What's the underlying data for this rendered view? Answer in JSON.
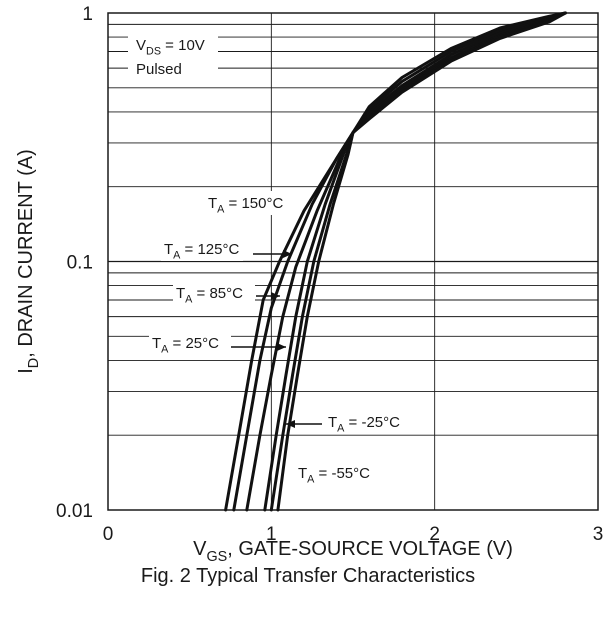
{
  "chart_data": {
    "type": "line",
    "title": "",
    "xlabel": {
      "main": "V",
      "sub": "GS",
      "rest": ", GATE-SOURCE VOLTAGE (V)"
    },
    "ylabel": {
      "main": "I",
      "sub": "D",
      "rest": ", DRAIN CURRENT (A)"
    },
    "caption": "Fig. 2  Typical Transfer Characteristics",
    "xlim": [
      0,
      3
    ],
    "ylim": [
      0.01,
      1
    ],
    "yscale": "log",
    "grid": true,
    "x_ticks": [
      "0",
      "1",
      "2",
      "3"
    ],
    "y_ticks": [
      "0.01",
      "0.1",
      "1"
    ],
    "conditions": [
      {
        "main": "V",
        "sub": "DS",
        "rest": " = 10V"
      },
      {
        "main": "Pulsed",
        "sub": "",
        "rest": ""
      }
    ],
    "series": [
      {
        "name": {
          "main": "T",
          "sub": "A",
          "rest": " = 150°C"
        },
        "x": [
          0.72,
          0.8,
          0.88,
          0.95,
          1.05,
          1.2,
          1.4,
          1.5,
          1.6,
          1.8,
          2.1,
          2.4,
          2.7,
          2.8
        ],
        "y": [
          0.01,
          0.02,
          0.04,
          0.07,
          0.1,
          0.16,
          0.26,
          0.33,
          0.42,
          0.55,
          0.72,
          0.87,
          0.97,
          1.0
        ]
      },
      {
        "name": {
          "main": "T",
          "sub": "A",
          "rest": " = 125°C"
        },
        "x": [
          0.77,
          0.85,
          0.93,
          1.0,
          1.1,
          1.25,
          1.4,
          1.5,
          1.6,
          1.8,
          2.1,
          2.4,
          2.7,
          2.8
        ],
        "y": [
          0.01,
          0.02,
          0.04,
          0.065,
          0.1,
          0.17,
          0.26,
          0.33,
          0.41,
          0.53,
          0.7,
          0.85,
          0.96,
          1.0
        ]
      },
      {
        "name": {
          "main": "T",
          "sub": "A",
          "rest": " = 85°C"
        },
        "x": [
          0.85,
          0.93,
          1.0,
          1.07,
          1.15,
          1.28,
          1.42,
          1.5,
          1.6,
          1.8,
          2.1,
          2.4,
          2.7,
          2.8
        ],
        "y": [
          0.01,
          0.02,
          0.035,
          0.06,
          0.095,
          0.16,
          0.26,
          0.33,
          0.4,
          0.51,
          0.68,
          0.83,
          0.95,
          1.0
        ]
      },
      {
        "name": {
          "main": "T",
          "sub": "A",
          "rest": " = 25°C"
        },
        "x": [
          0.96,
          1.03,
          1.09,
          1.15,
          1.22,
          1.33,
          1.45,
          1.5,
          1.6,
          1.8,
          2.1,
          2.4,
          2.7,
          2.8
        ],
        "y": [
          0.01,
          0.02,
          0.035,
          0.06,
          0.1,
          0.17,
          0.28,
          0.33,
          0.39,
          0.5,
          0.66,
          0.81,
          0.94,
          1.0
        ]
      },
      {
        "name": {
          "main": "T",
          "sub": "A",
          "rest": " = -25°C"
        },
        "x": [
          1.0,
          1.07,
          1.13,
          1.19,
          1.26,
          1.36,
          1.46,
          1.5,
          1.6,
          1.8,
          2.1,
          2.4,
          2.7,
          2.8
        ],
        "y": [
          0.01,
          0.02,
          0.035,
          0.06,
          0.1,
          0.17,
          0.27,
          0.33,
          0.38,
          0.49,
          0.65,
          0.8,
          0.93,
          1.0
        ]
      },
      {
        "name": {
          "main": "T",
          "sub": "A",
          "rest": " = -55°C"
        },
        "x": [
          1.04,
          1.1,
          1.16,
          1.22,
          1.29,
          1.38,
          1.47,
          1.5,
          1.6,
          1.8,
          2.1,
          2.4,
          2.7,
          2.8
        ],
        "y": [
          0.01,
          0.02,
          0.035,
          0.06,
          0.1,
          0.17,
          0.27,
          0.33,
          0.375,
          0.48,
          0.64,
          0.79,
          0.92,
          1.0
        ]
      }
    ]
  }
}
